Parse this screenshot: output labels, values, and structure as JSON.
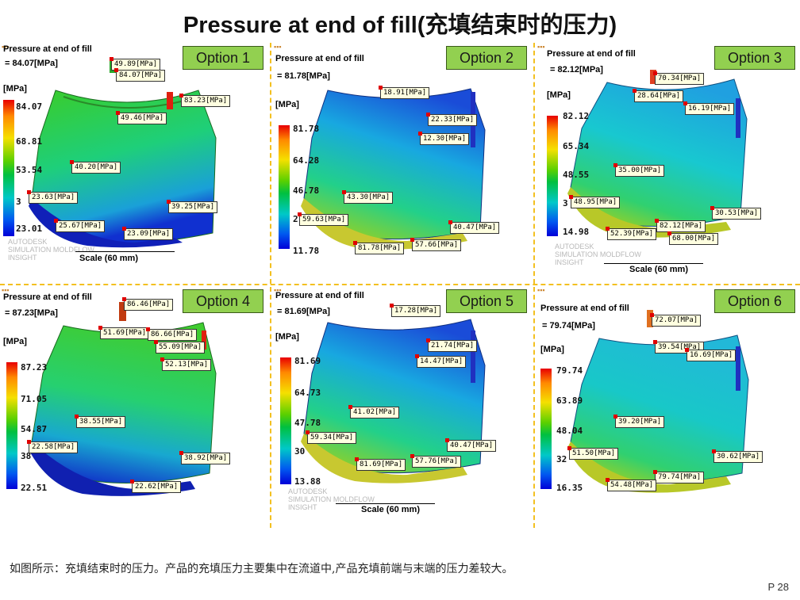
{
  "title": "Pressure at end of fill(充填结束时的压力)",
  "caption": "如图所示：充填结束时的压力。产品的充填压力主要集中在流道中,产品充填前端与末端的压力差较大。",
  "page_number": "P 28",
  "panel_title": "Pressure at end of fill",
  "unit_label": "[MPa]",
  "scale_label": "Scale (60 mm)",
  "watermark": [
    "AUTODESK",
    "SIMULATION MOLDFLOW",
    "INSIGHT"
  ],
  "colors": {
    "option_badge": "#92d050",
    "divider": "#f3c020",
    "tag_bg": "#ffffe0"
  },
  "panels": [
    {
      "option": "Option 1",
      "value": "= 84.07[MPa]",
      "scale": [
        "84.07",
        "68.81",
        "53.54",
        "3",
        "23.01"
      ],
      "tags": [
        "49.89[MPa]",
        "84.07[MPa]",
        "83.23[MPa]",
        "49.46[MPa]",
        "40.20[MPa]",
        "23.63[MPa]",
        "39.25[MPa]",
        "25.67[MPa]",
        "23.09[MPa]"
      ]
    },
    {
      "option": "Option 2",
      "value": "= 81.78[MPa]",
      "scale": [
        "81.78",
        "64.28",
        "46.78",
        "2",
        "11.78"
      ],
      "tags": [
        "18.91[MPa]",
        "22.33[MPa]",
        "12.30[MPa]",
        "43.30[MPa]",
        "59.63[MPa]",
        "40.47[MPa]",
        "81.78[MPa]",
        "57.66[MPa]"
      ]
    },
    {
      "option": "Option 3",
      "value": "= 82.12[MPa]",
      "scale": [
        "82.12",
        "65.34",
        "48.55",
        "3",
        "14.98"
      ],
      "tags": [
        "70.34[MPa]",
        "28.64[MPa]",
        "16.19[MPa]",
        "35.00[MPa]",
        "48.95[MPa]",
        "30.53[MPa]",
        "82.12[MPa]",
        "52.39[MPa]",
        "68.00[MPa]"
      ]
    },
    {
      "option": "Option 4",
      "value": "= 87.23[MPa]",
      "scale": [
        "87.23",
        "71.05",
        "54.87",
        "38",
        "22.51"
      ],
      "tags": [
        "86.46[MPa]",
        "51.69[MPa]",
        "86.66[MPa]",
        "55.09[MPa]",
        "52.13[MPa]",
        "38.55[MPa]",
        "22.58[MPa]",
        "38.92[MPa]",
        "22.62[MPa]"
      ]
    },
    {
      "option": "Option 5",
      "value": "= 81.69[MPa]",
      "scale": [
        "81.69",
        "64.73",
        "47.78",
        "30",
        "13.88"
      ],
      "tags": [
        "17.28[MPa]",
        "21.74[MPa]",
        "14.47[MPa]",
        "41.02[MPa]",
        "59.34[MPa]",
        "40.47[MPa]",
        "81.69[MPa]",
        "57.76[MPa]"
      ]
    },
    {
      "option": "Option 6",
      "value": "= 79.74[MPa]",
      "scale": [
        "79.74",
        "63.89",
        "48.04",
        "32",
        "16.35"
      ],
      "tags": [
        "72.07[MPa]",
        "39.54[MPa]",
        "16.69[MPa]",
        "39.20[MPa]",
        "51.50[MPa]",
        "30.62[MPa]",
        "79.74[MPa]",
        "54.48[MPa]"
      ]
    }
  ]
}
